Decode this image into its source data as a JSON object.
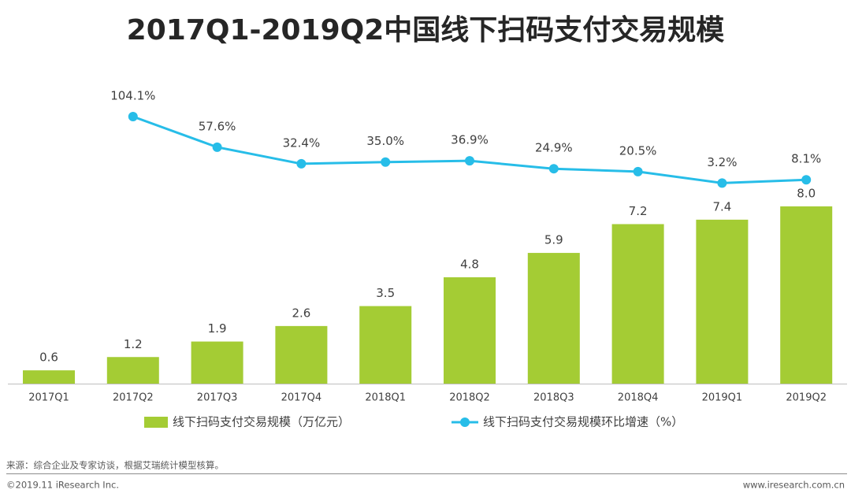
{
  "chart_data": {
    "type": "bar-line",
    "title": "2017Q1-2019Q2中国线下扫码支付交易规模",
    "categories": [
      "2017Q1",
      "2017Q2",
      "2017Q3",
      "2017Q4",
      "2018Q1",
      "2018Q2",
      "2018Q3",
      "2018Q4",
      "2019Q1",
      "2019Q2"
    ],
    "series": [
      {
        "name": "线下扫码支付交易规模（万亿元）",
        "type": "bar",
        "color": "#a4cc34",
        "values": [
          0.6,
          1.2,
          1.9,
          2.6,
          3.5,
          4.8,
          5.9,
          7.2,
          7.4,
          8.0
        ],
        "value_labels": [
          "0.6",
          "1.2",
          "1.9",
          "2.6",
          "3.5",
          "4.8",
          "5.9",
          "7.2",
          "7.4",
          "8.0"
        ]
      },
      {
        "name": "线下扫码支付交易规模环比增速（%）",
        "type": "line",
        "axis": "y2",
        "color": "#27bde8",
        "values": [
          null,
          104.1,
          57.6,
          32.4,
          35.0,
          36.9,
          24.9,
          20.5,
          3.2,
          8.1
        ],
        "value_labels": [
          null,
          "104.1%",
          "57.6%",
          "32.4%",
          "35.0%",
          "36.9%",
          "24.9%",
          "20.5%",
          "3.2%",
          "8.1%"
        ]
      }
    ],
    "ylim": [
      0,
      8
    ],
    "y2lim": [
      0,
      104.1
    ],
    "source": "来源：综合企业及专家访谈，根据艾瑞统计模型核算。",
    "copyright": "©2019.11 iResearch Inc.",
    "website": "www.iresearch.com.cn"
  }
}
